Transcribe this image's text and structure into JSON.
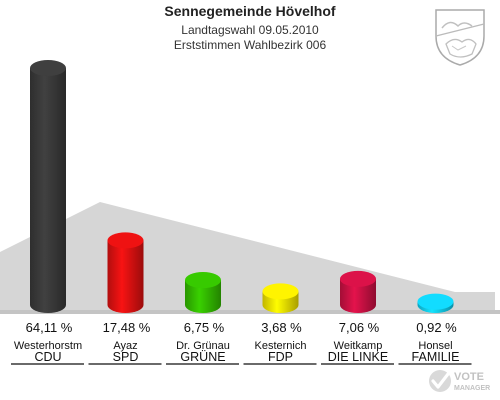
{
  "header": {
    "title": "Sennegemeinde Hövelhof",
    "subtitle1": "Landtagswahl 09.05.2010",
    "subtitle2": "Erststimmen Wahlbezirk 006"
  },
  "logo": {
    "line1": "VOTE",
    "line2": "MANAGER"
  },
  "chart_data": {
    "type": "bar",
    "title": "Sennegemeinde Hövelhof",
    "ylim": [
      0,
      70
    ],
    "grid": false,
    "legend": "none",
    "categories": [
      "CDU",
      "SPD",
      "GRÜNE",
      "FDP",
      "DIE LINKE",
      "FAMILIE"
    ],
    "candidates": [
      "Westerhorstm",
      "Ayaz",
      "Dr. Grünau",
      "Kesternich",
      "Weitkamp",
      "Honsel"
    ],
    "values": [
      64.11,
      17.48,
      6.75,
      3.68,
      7.06,
      0.92
    ],
    "value_labels": [
      "64,11 %",
      "17,48 %",
      "6,75 %",
      "3,68 %",
      "7,06 %",
      "0,92 %"
    ],
    "colors": [
      "#3a3a3a",
      "#dd1111",
      "#33bb00",
      "#f2e200",
      "#cc1144",
      "#11ccee"
    ]
  }
}
